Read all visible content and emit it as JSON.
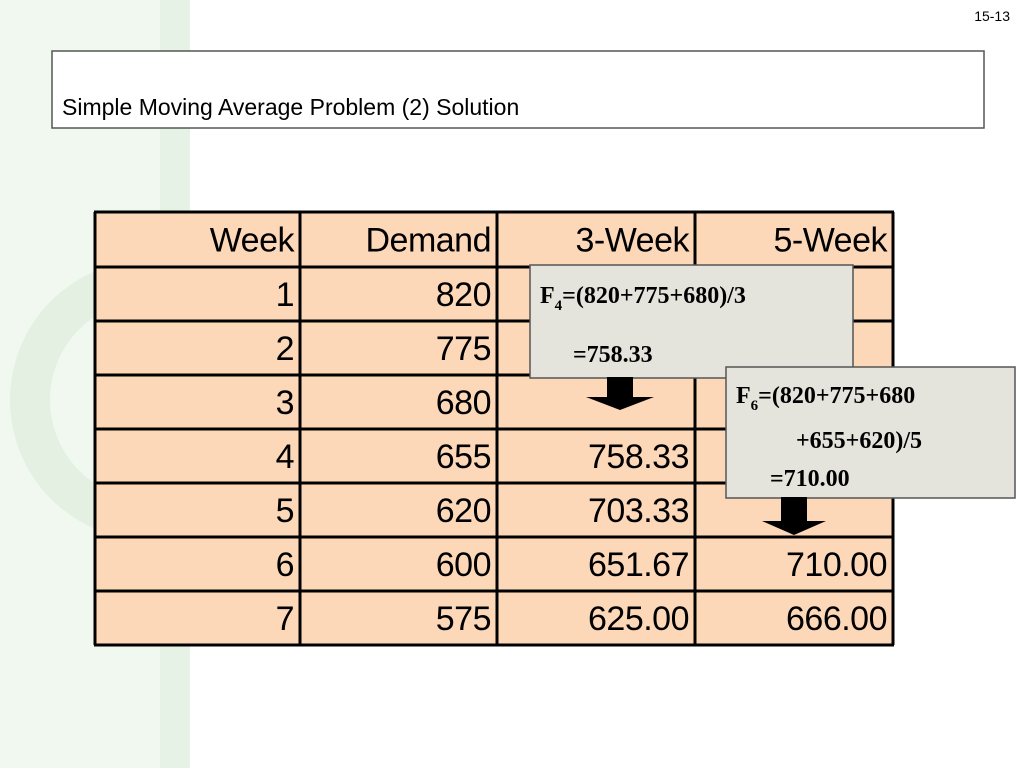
{
  "page_number": "15-13",
  "title": "Simple Moving Average Problem (2) Solution",
  "table": {
    "header": [
      "Week",
      "Demand",
      "3-Week",
      "5-Week"
    ],
    "rows": [
      [
        "1",
        "820",
        null,
        null
      ],
      [
        "2",
        "775",
        null,
        null
      ],
      [
        "3",
        "680",
        null,
        null
      ],
      [
        "4",
        "655",
        "758.33",
        null
      ],
      [
        "5",
        "620",
        "703.33",
        null
      ],
      [
        "6",
        "600",
        "651.67",
        "710.00"
      ],
      [
        "7",
        "575",
        "625.00",
        "666.00"
      ]
    ]
  },
  "callouts": [
    {
      "symbol": "F",
      "subscript": "4",
      "lines": [
        "=(820+775+680)/3",
        "=758.33"
      ]
    },
    {
      "symbol": "F",
      "subscript": "6",
      "lines": [
        "=(820+775+680",
        "+655+620)/5",
        "=710.00"
      ]
    }
  ]
}
